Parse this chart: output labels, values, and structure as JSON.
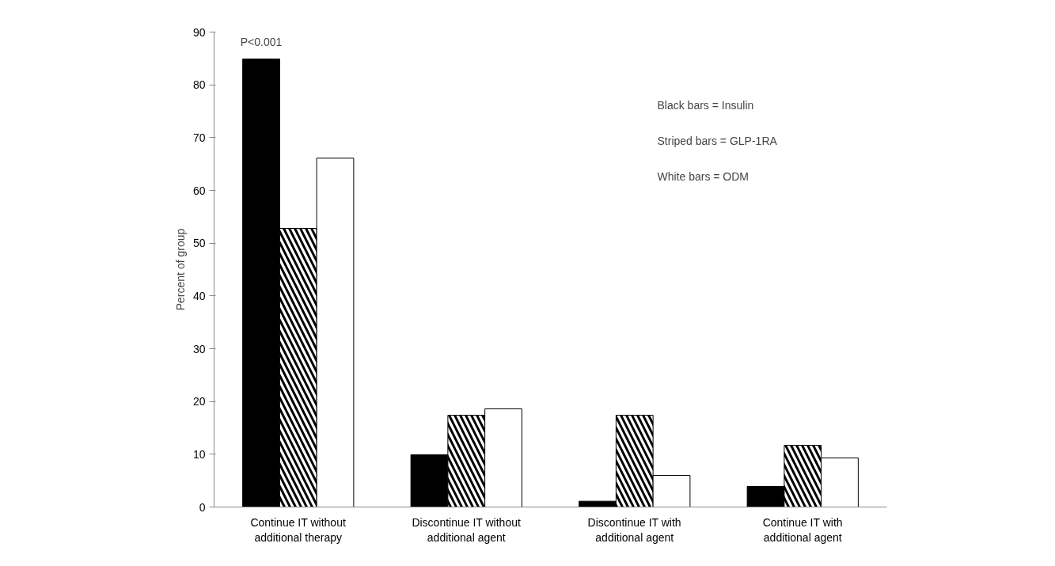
{
  "chart_data": {
    "type": "bar",
    "ylabel": "Percent of group",
    "categories": [
      "Continue IT without\nadditional therapy",
      "Discontinue IT without\nadditional agent",
      "Discontinue IT with\nadditional agent",
      "Continue IT with\nadditional agent"
    ],
    "series": [
      {
        "color": "#000000",
        "values": [
          84.9,
          9.9,
          1.1,
          3.9
        ]
      },
      {
        "color": "#000000",
        "values": [
          52.8,
          17.4,
          17.4,
          11.7
        ]
      },
      {
        "color": "#ffffff",
        "values": [
          66.1,
          18.6,
          6.0,
          9.3
        ]
      }
    ],
    "ylim": [
      0,
      90
    ],
    "yticks": [
      0,
      10,
      20,
      30,
      40,
      50,
      60,
      70,
      80,
      90
    ],
    "grid": false,
    "annotations": [
      "P<0.001",
      "Black bars = Insulin",
      "Striped bars = GLP-1RA",
      "White bars = ODM"
    ]
  }
}
